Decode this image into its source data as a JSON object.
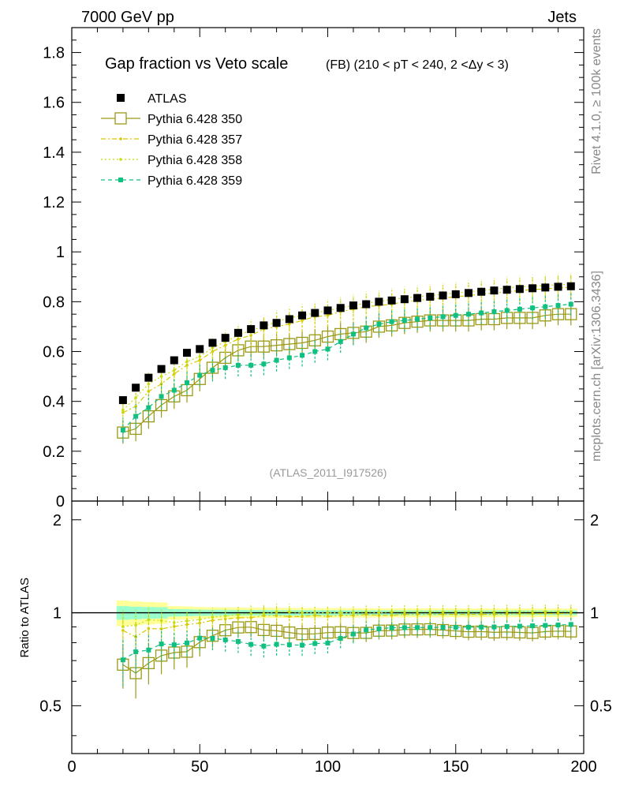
{
  "header": {
    "left": "7000 GeV pp",
    "right": "Jets"
  },
  "side_labels": {
    "rivet": "Rivet 4.1.0, ≥ 100k events",
    "mcplots": "mcplots.cern.ch [arXiv:1306.3436]"
  },
  "chart_data": {
    "type": "scatter",
    "title": "Gap fraction vs Veto scale",
    "subtitle": "(FB) (210 < pT < 240, 2 <Δy < 3)",
    "analysis_id": "(ATLAS_2011_I917526)",
    "xlabel": "",
    "ylabel_ratio": "Ratio to ATLAS",
    "xlim": [
      0,
      200
    ],
    "ylim_main": [
      0,
      1.9
    ],
    "ylim_ratio": [
      0.35,
      2.3
    ],
    "x_ticks": [
      0,
      50,
      100,
      150,
      200
    ],
    "x_tick_labels": [
      "0",
      "50",
      "100",
      "150",
      "200"
    ],
    "y_ticks_main": [
      0,
      0.2,
      0.4,
      0.6,
      0.8,
      1,
      1.2,
      1.4,
      1.6,
      1.8
    ],
    "y_tick_labels_main": [
      "0",
      "0.2",
      "0.4",
      "0.6",
      "0.8",
      "1",
      "1.2",
      "1.4",
      "1.6",
      "1.8"
    ],
    "y_ticks_ratio": [
      0.5,
      1,
      2
    ],
    "y_tick_labels_ratio": [
      "0.5",
      "1",
      "2"
    ],
    "x": [
      20,
      25,
      30,
      35,
      40,
      45,
      50,
      55,
      60,
      65,
      70,
      75,
      80,
      85,
      90,
      95,
      100,
      105,
      110,
      115,
      120,
      125,
      130,
      135,
      140,
      145,
      150,
      155,
      160,
      165,
      170,
      175,
      180,
      185,
      190,
      195
    ],
    "series": [
      {
        "name": "ATLAS",
        "color": "#000000",
        "style": "data",
        "values": [
          0.405,
          0.455,
          0.495,
          0.53,
          0.565,
          0.595,
          0.61,
          0.635,
          0.655,
          0.675,
          0.69,
          0.705,
          0.715,
          0.73,
          0.745,
          0.755,
          0.765,
          0.775,
          0.785,
          0.79,
          0.8,
          0.805,
          0.81,
          0.815,
          0.82,
          0.825,
          0.83,
          0.835,
          0.84,
          0.845,
          0.848,
          0.851,
          0.854,
          0.857,
          0.86,
          0.862
        ],
        "errors": [
          0.012,
          0.012,
          0.012,
          0.012,
          0.012,
          0.012,
          0.011,
          0.011,
          0.011,
          0.011,
          0.011,
          0.011,
          0.011,
          0.011,
          0.011,
          0.011,
          0.011,
          0.011,
          0.011,
          0.011,
          0.011,
          0.011,
          0.011,
          0.011,
          0.011,
          0.011,
          0.011,
          0.011,
          0.011,
          0.011,
          0.011,
          0.011,
          0.011,
          0.011,
          0.011,
          0.011
        ]
      },
      {
        "name": "Pythia 6.428 350",
        "color": "#9a9a16",
        "style": "open-square-line",
        "values": [
          0.275,
          0.29,
          0.34,
          0.385,
          0.42,
          0.445,
          0.49,
          0.535,
          0.575,
          0.605,
          0.62,
          0.62,
          0.625,
          0.63,
          0.635,
          0.645,
          0.66,
          0.67,
          0.675,
          0.68,
          0.7,
          0.705,
          0.715,
          0.72,
          0.725,
          0.725,
          0.725,
          0.725,
          0.73,
          0.73,
          0.735,
          0.735,
          0.735,
          0.745,
          0.75,
          0.75
        ],
        "errors": [
          0.045,
          0.05,
          0.05,
          0.05,
          0.05,
          0.05,
          0.05,
          0.045,
          0.045,
          0.045,
          0.045,
          0.045,
          0.045,
          0.045,
          0.045,
          0.045,
          0.045,
          0.045,
          0.045,
          0.045,
          0.045,
          0.045,
          0.045,
          0.045,
          0.045,
          0.045,
          0.045,
          0.045,
          0.045,
          0.045,
          0.045,
          0.045,
          0.045,
          0.045,
          0.045,
          0.045
        ]
      },
      {
        "name": "Pythia 6.428 357",
        "color": "#d8c800",
        "style": "dashdot-small-marker",
        "values": [
          0.355,
          0.38,
          0.44,
          0.47,
          0.51,
          0.545,
          0.565,
          0.6,
          0.625,
          0.65,
          0.665,
          0.69,
          0.7,
          0.71,
          0.725,
          0.74,
          0.745,
          0.76,
          0.77,
          0.78,
          0.785,
          0.79,
          0.8,
          0.805,
          0.81,
          0.815,
          0.82,
          0.825,
          0.83,
          0.835,
          0.84,
          0.845,
          0.848,
          0.852,
          0.855,
          0.858
        ],
        "errors": [
          0.05,
          0.05,
          0.05,
          0.045,
          0.045,
          0.045,
          0.045,
          0.045,
          0.045,
          0.045,
          0.045,
          0.045,
          0.045,
          0.045,
          0.045,
          0.045,
          0.045,
          0.045,
          0.045,
          0.045,
          0.045,
          0.045,
          0.045,
          0.045,
          0.045,
          0.045,
          0.045,
          0.045,
          0.045,
          0.045,
          0.045,
          0.045,
          0.045,
          0.045,
          0.045,
          0.045
        ]
      },
      {
        "name": "Pythia 6.428 358",
        "color": "#c8dc10",
        "style": "dotted-small-marker",
        "values": [
          0.365,
          0.415,
          0.47,
          0.5,
          0.525,
          0.56,
          0.58,
          0.615,
          0.64,
          0.665,
          0.685,
          0.7,
          0.72,
          0.735,
          0.745,
          0.755,
          0.765,
          0.775,
          0.785,
          0.795,
          0.8,
          0.81,
          0.815,
          0.82,
          0.825,
          0.83,
          0.835,
          0.84,
          0.845,
          0.85,
          0.855,
          0.86,
          0.862,
          0.865,
          0.868,
          0.87
        ],
        "errors": [
          0.05,
          0.05,
          0.05,
          0.045,
          0.045,
          0.045,
          0.045,
          0.045,
          0.045,
          0.045,
          0.045,
          0.045,
          0.045,
          0.045,
          0.045,
          0.045,
          0.045,
          0.045,
          0.045,
          0.045,
          0.045,
          0.045,
          0.045,
          0.045,
          0.045,
          0.045,
          0.045,
          0.045,
          0.045,
          0.045,
          0.045,
          0.045,
          0.045,
          0.045,
          0.045,
          0.045
        ]
      },
      {
        "name": "Pythia 6.428 359",
        "color": "#10c080",
        "style": "dashed-filled-square",
        "values": [
          0.285,
          0.34,
          0.375,
          0.42,
          0.445,
          0.475,
          0.505,
          0.525,
          0.535,
          0.545,
          0.545,
          0.55,
          0.565,
          0.575,
          0.585,
          0.6,
          0.61,
          0.64,
          0.67,
          0.695,
          0.71,
          0.72,
          0.725,
          0.73,
          0.735,
          0.74,
          0.745,
          0.75,
          0.755,
          0.76,
          0.765,
          0.77,
          0.775,
          0.78,
          0.785,
          0.79
        ],
        "errors": [
          0.05,
          0.05,
          0.05,
          0.05,
          0.045,
          0.045,
          0.045,
          0.045,
          0.045,
          0.045,
          0.045,
          0.045,
          0.045,
          0.045,
          0.045,
          0.045,
          0.045,
          0.045,
          0.045,
          0.045,
          0.045,
          0.045,
          0.045,
          0.045,
          0.045,
          0.045,
          0.045,
          0.045,
          0.045,
          0.045,
          0.045,
          0.045,
          0.045,
          0.045,
          0.045,
          0.045
        ]
      }
    ],
    "band_colors": {
      "outer": "#ffff99",
      "inner": "#99ffcc"
    }
  }
}
